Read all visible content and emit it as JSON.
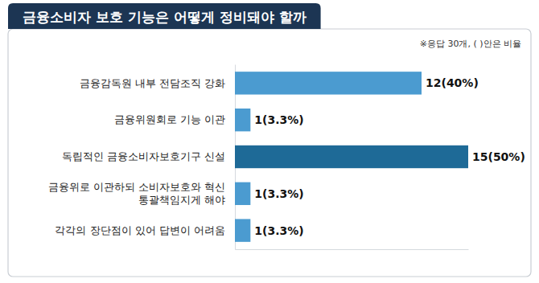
{
  "chart_data": {
    "type": "bar",
    "orientation": "horizontal",
    "title": "금융소비자 보호 기능은 어떻게 정비돼야 할까",
    "subtitle": "※응답 30개, ( )안은 비율",
    "categories": [
      "금융감독원 내부 전담조직 강화",
      "금융위원회로 기능 이관",
      "독립적인 금융소비자보호기구 신설",
      "금융위로 이관하되 소비자보호와 혁신 통괄책임지게 해야",
      "각각의 장단점이 있어 답변이 어려움"
    ],
    "values": [
      12,
      1,
      15,
      1,
      1
    ],
    "value_labels": [
      "12(40%)",
      "1(3.3%)",
      "15(50%)",
      "1(3.3%)",
      "1(3.3%)"
    ],
    "colors": [
      "#4b9bd0",
      "#4b9bd0",
      "#1e6a97",
      "#4b9bd0",
      "#4b9bd0"
    ],
    "xlim": [
      0,
      15
    ],
    "xticks": [],
    "data_labels": true,
    "tick_labels": "y",
    "grid": false
  }
}
